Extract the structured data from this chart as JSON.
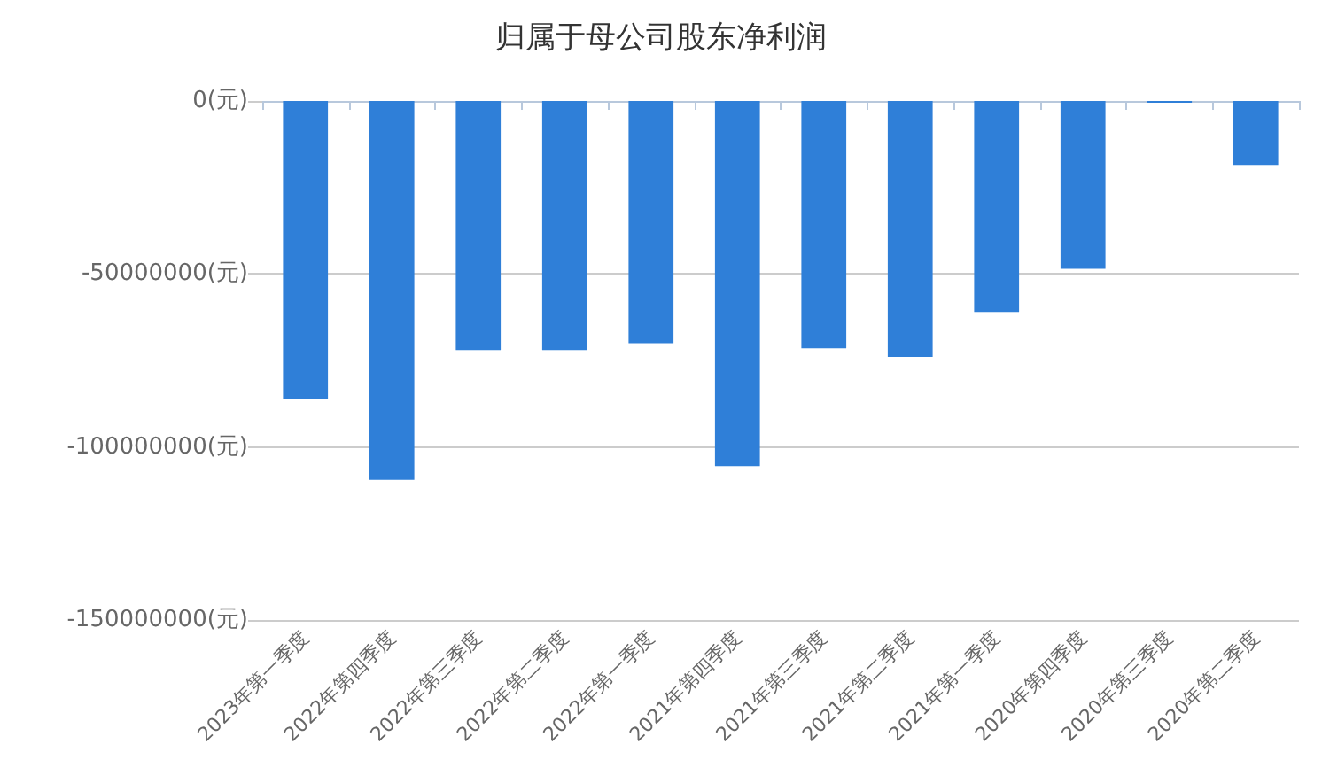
{
  "chart_data": {
    "type": "bar",
    "title": "归属于母公司股东净利润",
    "categories": [
      "2023年第一季度",
      "2022年第四季度",
      "2022年第三季度",
      "2022年第二季度",
      "2022年第一季度",
      "2021年第四季度",
      "2021年第三季度",
      "2021年第二季度",
      "2021年第一季度",
      "2020年第四季度",
      "2020年第三季度",
      "2020年第二季度"
    ],
    "values": [
      -86000000,
      -109500000,
      -72000000,
      -72000000,
      -70000000,
      -105500000,
      -71500000,
      -74000000,
      -61000000,
      -48500000,
      -500000,
      -18500000
    ],
    "color": "#2f7fd8",
    "ylim": [
      -150000000,
      0
    ],
    "yticks": [
      {
        "value": -150000000,
        "label": "-150000000(元)"
      },
      {
        "value": -100000000,
        "label": "-100000000(元)"
      },
      {
        "value": -50000000,
        "label": "-50000000(元)"
      },
      {
        "value": 0,
        "label": "0(元)"
      }
    ],
    "grid": "y"
  }
}
